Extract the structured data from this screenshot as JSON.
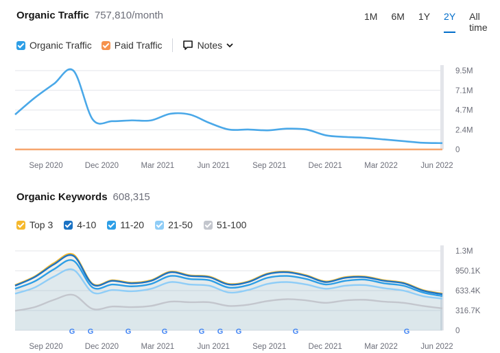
{
  "traffic": {
    "title": "Organic Traffic",
    "value": "757,810/month",
    "ranges": [
      "1M",
      "6M",
      "1Y",
      "2Y",
      "All time"
    ],
    "active_range": "2Y",
    "legend": [
      {
        "label": "Organic Traffic",
        "color": "#2d9ee6"
      },
      {
        "label": "Paid Traffic",
        "color": "#f6924d"
      }
    ],
    "notes_label": "Notes"
  },
  "keywords": {
    "title": "Organic Keywords",
    "value": "608,315",
    "legend": [
      {
        "label": "Top 3",
        "color": "#f5b82d"
      },
      {
        "label": "4-10",
        "color": "#1a72c4"
      },
      {
        "label": "11-20",
        "color": "#2d9ee6"
      },
      {
        "label": "21-50",
        "color": "#8fcdf7"
      },
      {
        "label": "51-100",
        "color": "#c3c6cd"
      }
    ]
  },
  "chart_data": [
    {
      "type": "line",
      "title": "Organic Traffic",
      "x": [
        "2020-08",
        "2020-09",
        "2020-10",
        "2020-11",
        "2020-12",
        "2021-01",
        "2021-02",
        "2021-03",
        "2021-04",
        "2021-05",
        "2021-06",
        "2021-07",
        "2021-08",
        "2021-09",
        "2021-10",
        "2021-11",
        "2021-12",
        "2022-01",
        "2022-02",
        "2022-03",
        "2022-04",
        "2022-05",
        "2022-06"
      ],
      "x_tick_labels": [
        "Sep 2020",
        "Dec 2020",
        "Mar 2021",
        "Jun 2021",
        "Sep 2021",
        "Dec 2021",
        "Mar 2022",
        "Jun 2022"
      ],
      "y_tick_labels": [
        "9.5M",
        "7.1M",
        "4.7M",
        "2.4M",
        "0"
      ],
      "ylim": [
        0,
        9500000
      ],
      "series": [
        {
          "name": "Organic Traffic",
          "color": "#4aa8e8",
          "values": [
            4200000,
            6200000,
            7900000,
            9500000,
            3600000,
            3400000,
            3500000,
            3500000,
            4300000,
            4200000,
            3200000,
            2400000,
            2400000,
            2300000,
            2500000,
            2400000,
            1700000,
            1500000,
            1400000,
            1200000,
            1000000,
            800000,
            760000
          ]
        },
        {
          "name": "Paid Traffic",
          "color": "#f6a56e",
          "values": [
            0,
            0,
            0,
            0,
            0,
            0,
            0,
            0,
            0,
            0,
            0,
            0,
            0,
            0,
            0,
            0,
            0,
            0,
            0,
            0,
            0,
            0,
            0
          ]
        }
      ]
    },
    {
      "type": "area",
      "title": "Organic Keywords",
      "x": [
        "2020-08",
        "2020-09",
        "2020-10",
        "2020-11",
        "2020-12",
        "2021-01",
        "2021-02",
        "2021-03",
        "2021-04",
        "2021-05",
        "2021-06",
        "2021-07",
        "2021-08",
        "2021-09",
        "2021-10",
        "2021-11",
        "2021-12",
        "2022-01",
        "2022-02",
        "2022-03",
        "2022-04",
        "2022-05",
        "2022-06"
      ],
      "x_tick_labels": [
        "Sep 2020",
        "Dec 2020",
        "Mar 2021",
        "Jun 2021",
        "Sep 2021",
        "Dec 2021",
        "Mar 2022",
        "Jun 2022"
      ],
      "y_tick_labels": [
        "1.3M",
        "950.1K",
        "633.4K",
        "316.7K",
        "0"
      ],
      "ylim": [
        0,
        1300000
      ],
      "series": [
        {
          "name": "Top 3",
          "color": "#f5b82d",
          "values": [
            740000,
            880000,
            1100000,
            1240000,
            760000,
            820000,
            780000,
            820000,
            960000,
            900000,
            880000,
            760000,
            800000,
            930000,
            960000,
            900000,
            800000,
            870000,
            880000,
            820000,
            780000,
            660000,
            600000
          ]
        },
        {
          "name": "4-10",
          "color": "#1a72c4",
          "values": [
            730000,
            870000,
            1080000,
            1220000,
            750000,
            810000,
            770000,
            810000,
            950000,
            890000,
            870000,
            750000,
            790000,
            920000,
            950000,
            890000,
            790000,
            860000,
            870000,
            810000,
            770000,
            650000,
            590000
          ]
        },
        {
          "name": "11-20",
          "color": "#2d9ee6",
          "values": [
            680000,
            800000,
            1000000,
            1140000,
            700000,
            750000,
            720000,
            760000,
            890000,
            840000,
            820000,
            700000,
            740000,
            860000,
            890000,
            840000,
            750000,
            810000,
            830000,
            770000,
            730000,
            620000,
            560000
          ]
        },
        {
          "name": "21-50",
          "color": "#8fcdf7",
          "values": [
            600000,
            700000,
            880000,
            990000,
            620000,
            660000,
            640000,
            680000,
            790000,
            750000,
            730000,
            620000,
            660000,
            760000,
            790000,
            750000,
            680000,
            730000,
            740000,
            690000,
            650000,
            560000,
            520000
          ]
        },
        {
          "name": "51-100",
          "color": "#c3c6cd",
          "values": [
            320000,
            380000,
            500000,
            580000,
            350000,
            390000,
            380000,
            400000,
            470000,
            460000,
            460000,
            400000,
            420000,
            480000,
            510000,
            490000,
            450000,
            490000,
            500000,
            470000,
            450000,
            400000,
            360000
          ]
        }
      ],
      "annotations": [
        "G",
        "G",
        "G",
        "G",
        "G",
        "G",
        "G",
        "G",
        "G"
      ]
    }
  ]
}
